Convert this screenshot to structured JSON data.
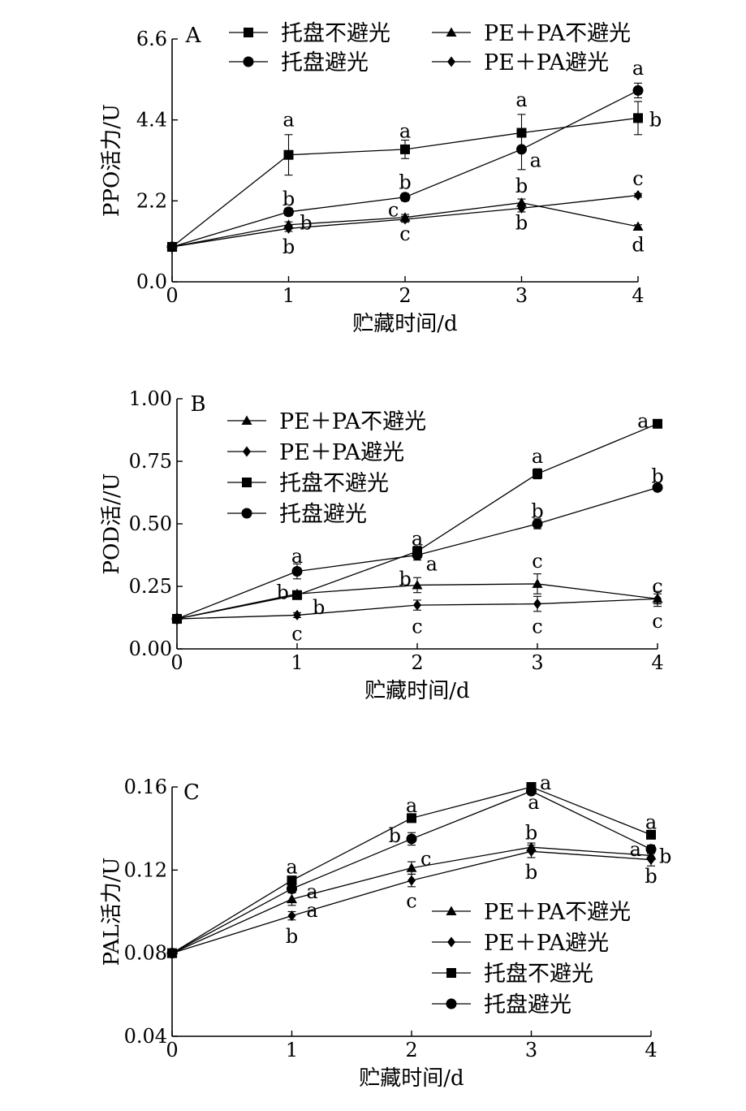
{
  "chart_data": [
    {
      "type": "line",
      "panel": "A",
      "xlabel": "贮藏时间/d",
      "ylabel": "PPO活力/U",
      "x": [
        0,
        1,
        2,
        3,
        4
      ],
      "xticks": [
        "0",
        "1",
        "2",
        "3",
        "4"
      ],
      "ylim": [
        0.0,
        6.6
      ],
      "yticks": [
        "0.0",
        "2.2",
        "4.4",
        "6.6"
      ],
      "legend": {
        "placement": "top",
        "columns": 2,
        "entries": [
          "托盘不避光",
          "PE＋PA不避光",
          "托盘避光",
          "PE＋PA避光"
        ]
      },
      "series": [
        {
          "name": "托盘不避光",
          "marker": "square",
          "values": [
            0.95,
            3.45,
            3.6,
            4.05,
            4.45
          ],
          "errors": [
            0.05,
            0.55,
            0.25,
            0.5,
            0.45
          ]
        },
        {
          "name": "PE＋PA不避光",
          "marker": "triangle",
          "values": [
            0.95,
            1.55,
            1.75,
            2.15,
            1.5
          ],
          "errors": [
            0.05,
            0.08,
            0.08,
            0.1,
            0.05
          ]
        },
        {
          "name": "托盘避光",
          "marker": "circle",
          "values": [
            0.95,
            1.9,
            2.3,
            3.6,
            5.2
          ],
          "errors": [
            0.05,
            0.1,
            0.1,
            0.55,
            0.2
          ]
        },
        {
          "name": "PE＋PA避光",
          "marker": "diamond",
          "values": [
            0.95,
            1.45,
            1.7,
            2.0,
            2.35
          ],
          "errors": [
            0.05,
            0.08,
            0.08,
            0.1,
            0.05
          ]
        }
      ],
      "annotations": [
        {
          "x": 1,
          "y": 4.4,
          "text": "a"
        },
        {
          "x": 1,
          "y": 2.25,
          "text": "b"
        },
        {
          "x": 1.15,
          "y": 1.6,
          "text": "b"
        },
        {
          "x": 1,
          "y": 0.95,
          "text": "b"
        },
        {
          "x": 2,
          "y": 4.1,
          "text": "a"
        },
        {
          "x": 2,
          "y": 2.7,
          "text": "b"
        },
        {
          "x": 1.9,
          "y": 1.95,
          "text": "c"
        },
        {
          "x": 2,
          "y": 1.3,
          "text": "c"
        },
        {
          "x": 3,
          "y": 4.95,
          "text": "a"
        },
        {
          "x": 3,
          "y": 2.6,
          "text": "b"
        },
        {
          "x": 3.12,
          "y": 3.3,
          "text": "a"
        },
        {
          "x": 3,
          "y": 1.6,
          "text": "b"
        },
        {
          "x": 4,
          "y": 5.8,
          "text": "a"
        },
        {
          "x": 4.15,
          "y": 4.4,
          "text": "b"
        },
        {
          "x": 4,
          "y": 2.8,
          "text": "c"
        },
        {
          "x": 4,
          "y": 1.0,
          "text": "d"
        }
      ]
    },
    {
      "type": "line",
      "panel": "B",
      "xlabel": "贮藏时间/d",
      "ylabel": "POD活//U",
      "x": [
        0,
        1,
        2,
        3,
        4
      ],
      "xticks": [
        "0",
        "1",
        "2",
        "3",
        "4"
      ],
      "ylim": [
        0.0,
        1.0
      ],
      "yticks": [
        "0.00",
        "0.25",
        "0.50",
        "0.75",
        "1.00"
      ],
      "legend": {
        "placement": "top-left",
        "columns": 1,
        "entries": [
          "PE＋PA不避光",
          "PE＋PA避光",
          "托盘不避光",
          "托盘避光"
        ]
      },
      "series": [
        {
          "name": "PE＋PA不避光",
          "marker": "triangle",
          "values": [
            0.12,
            0.22,
            0.255,
            0.26,
            0.2
          ],
          "errors": [
            0.005,
            0.01,
            0.03,
            0.04,
            0.02
          ]
        },
        {
          "name": "PE＋PA避光",
          "marker": "diamond",
          "values": [
            0.12,
            0.135,
            0.175,
            0.18,
            0.2
          ],
          "errors": [
            0.005,
            0.01,
            0.02,
            0.03,
            0.03
          ]
        },
        {
          "name": "托盘不避光",
          "marker": "square",
          "values": [
            0.12,
            0.215,
            0.39,
            0.7,
            0.9
          ],
          "errors": [
            0.005,
            0.01,
            0.02,
            0.02,
            0.005
          ]
        },
        {
          "name": "托盘避光",
          "marker": "circle",
          "values": [
            0.12,
            0.31,
            0.375,
            0.5,
            0.645
          ],
          "errors": [
            0.005,
            0.03,
            0.02,
            0.02,
            0.01
          ]
        }
      ],
      "annotations": [
        {
          "x": 1,
          "y": 0.37,
          "text": "a"
        },
        {
          "x": 0.88,
          "y": 0.225,
          "text": "b"
        },
        {
          "x": 1.18,
          "y": 0.165,
          "text": "b"
        },
        {
          "x": 1,
          "y": 0.06,
          "text": "c"
        },
        {
          "x": 2,
          "y": 0.44,
          "text": "a"
        },
        {
          "x": 2.12,
          "y": 0.34,
          "text": "a"
        },
        {
          "x": 1.9,
          "y": 0.28,
          "text": "b"
        },
        {
          "x": 2,
          "y": 0.09,
          "text": "c"
        },
        {
          "x": 3,
          "y": 0.77,
          "text": "a"
        },
        {
          "x": 3,
          "y": 0.55,
          "text": "b"
        },
        {
          "x": 3,
          "y": 0.35,
          "text": "c"
        },
        {
          "x": 3,
          "y": 0.09,
          "text": "c"
        },
        {
          "x": 3.88,
          "y": 0.91,
          "text": "a"
        },
        {
          "x": 4,
          "y": 0.69,
          "text": "b"
        },
        {
          "x": 4,
          "y": 0.25,
          "text": "c"
        },
        {
          "x": 4,
          "y": 0.11,
          "text": "c"
        }
      ]
    },
    {
      "type": "line",
      "panel": "C",
      "xlabel": "贮藏时间/d",
      "ylabel": "PAL活力/U",
      "x": [
        0,
        1,
        2,
        3,
        4
      ],
      "xticks": [
        "0",
        "1",
        "2",
        "3",
        "4"
      ],
      "ylim": [
        0.04,
        0.16
      ],
      "yticks": [
        "0.04",
        "0.08",
        "0.12",
        "0.16"
      ],
      "legend": {
        "placement": "bottom-right",
        "columns": 1,
        "entries": [
          "PE＋PA不避光",
          "PE＋PA避光",
          "托盘不避光",
          "托盘避光"
        ]
      },
      "series": [
        {
          "name": "PE＋PA不避光",
          "marker": "triangle",
          "values": [
            0.08,
            0.106,
            0.121,
            0.131,
            0.127
          ],
          "errors": [
            0.001,
            0.003,
            0.003,
            0.002,
            0.002
          ]
        },
        {
          "name": "PE＋PA避光",
          "marker": "diamond",
          "values": [
            0.08,
            0.098,
            0.115,
            0.129,
            0.125
          ],
          "errors": [
            0.001,
            0.002,
            0.003,
            0.003,
            0.003
          ]
        },
        {
          "name": "托盘不避光",
          "marker": "square",
          "values": [
            0.08,
            0.115,
            0.145,
            0.16,
            0.137
          ],
          "errors": [
            0.001,
            0.002,
            0.002,
            0.001,
            0.002
          ]
        },
        {
          "name": "托盘避光",
          "marker": "circle",
          "values": [
            0.08,
            0.111,
            0.135,
            0.158,
            0.13
          ],
          "errors": [
            0.001,
            0.002,
            0.003,
            0.001,
            0.002
          ]
        }
      ],
      "annotations": [
        {
          "x": 1,
          "y": 0.1215,
          "text": "a"
        },
        {
          "x": 1.17,
          "y": 0.1095,
          "text": "a"
        },
        {
          "x": 1.17,
          "y": 0.1005,
          "text": "a"
        },
        {
          "x": 1,
          "y": 0.088,
          "text": "b"
        },
        {
          "x": 2,
          "y": 0.151,
          "text": "a"
        },
        {
          "x": 1.86,
          "y": 0.1365,
          "text": "b"
        },
        {
          "x": 2.12,
          "y": 0.1255,
          "text": "c"
        },
        {
          "x": 2,
          "y": 0.105,
          "text": "c"
        },
        {
          "x": 3.12,
          "y": 0.162,
          "text": "a"
        },
        {
          "x": 3.02,
          "y": 0.1525,
          "text": "a"
        },
        {
          "x": 3,
          "y": 0.138,
          "text": "b"
        },
        {
          "x": 3,
          "y": 0.119,
          "text": "b"
        },
        {
          "x": 4,
          "y": 0.143,
          "text": "a"
        },
        {
          "x": 3.87,
          "y": 0.13,
          "text": "a"
        },
        {
          "x": 4.12,
          "y": 0.1265,
          "text": "b"
        },
        {
          "x": 4,
          "y": 0.117,
          "text": "b"
        }
      ]
    }
  ]
}
